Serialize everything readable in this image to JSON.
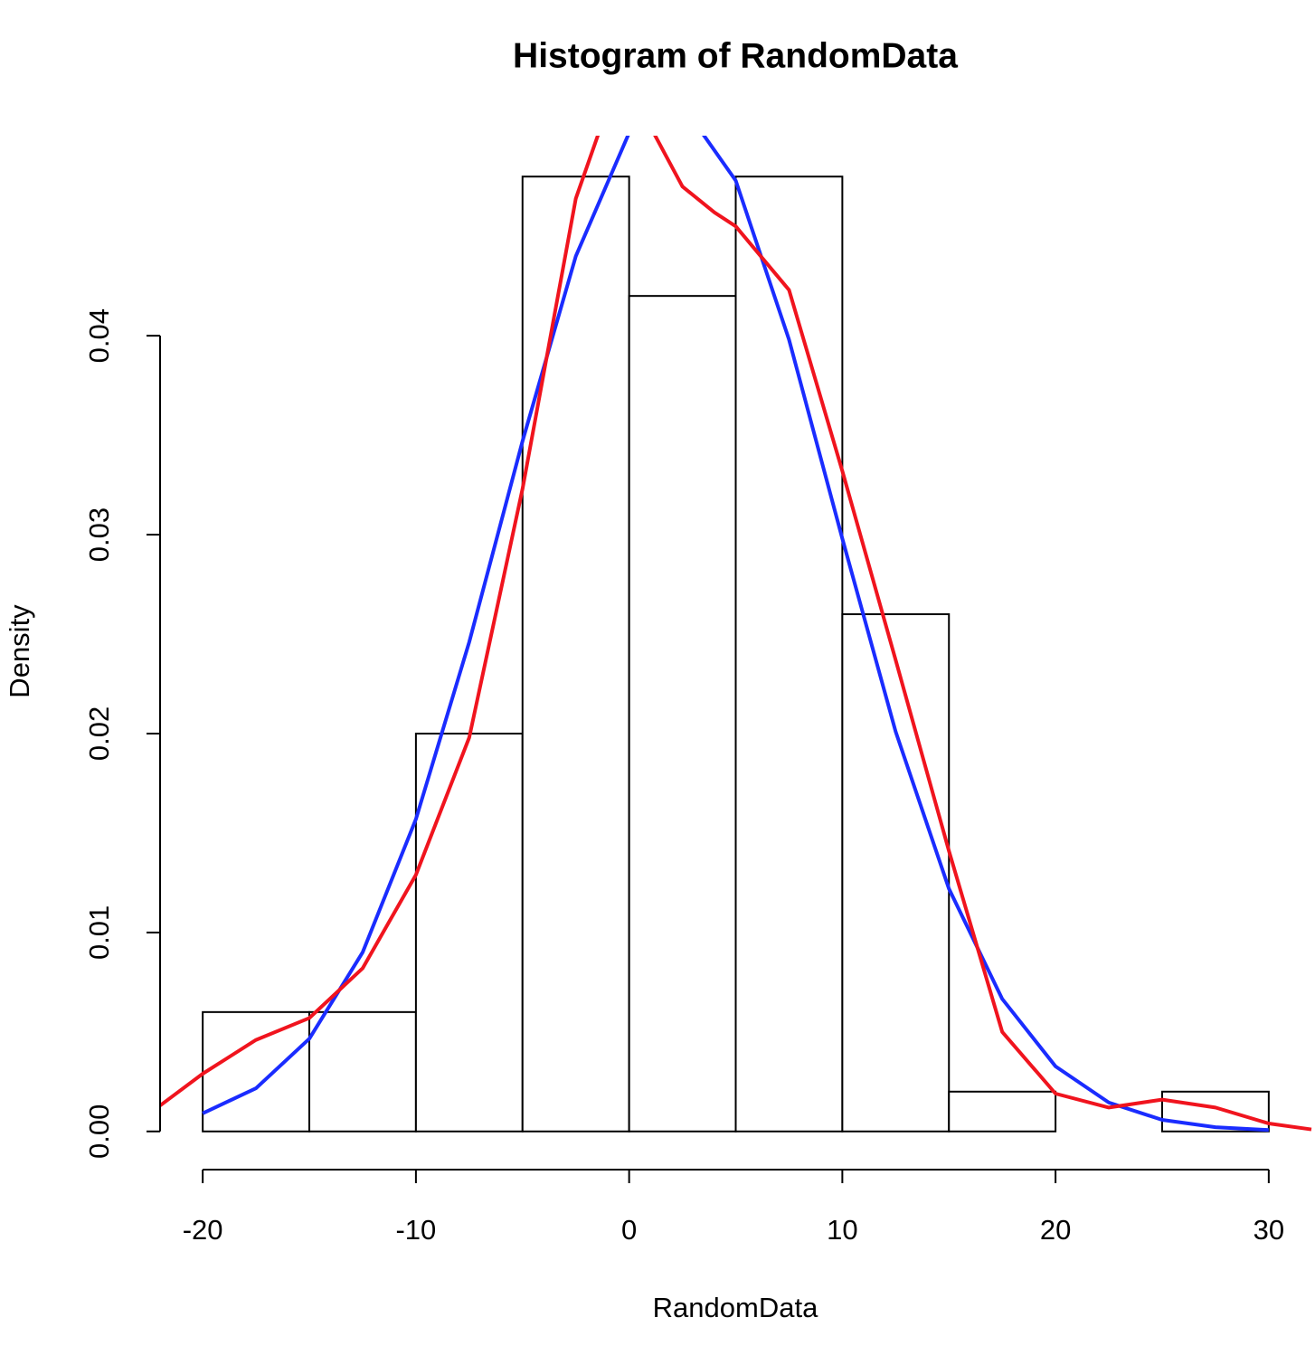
{
  "chart_data": {
    "type": "histogram",
    "title": "Histogram of RandomData",
    "xlabel": "RandomData",
    "ylabel": "Density",
    "bins": [
      -20,
      -15,
      -10,
      -5,
      0,
      5,
      10,
      15,
      20,
      25,
      30
    ],
    "values": [
      0.006,
      0.006,
      0.02,
      0.048,
      0.042,
      0.048,
      0.026,
      0.002,
      0,
      0.002
    ],
    "color": "#ffffff",
    "edgecolor": "#000000",
    "xlim": [
      -22,
      32
    ],
    "ylim": [
      -0.00192,
      0.04992
    ],
    "xticks": [
      -20,
      -10,
      0,
      10,
      20,
      30
    ],
    "yticks": [
      {
        "value": 0,
        "label": "0.00"
      },
      0.01,
      0.02,
      0.03,
      0.04
    ],
    "series": [
      {
        "color": "#1a2cff",
        "x": [
          -20,
          -17.5,
          -15,
          -12.5,
          -10,
          -7.5,
          -5,
          -2.5,
          0,
          2.5,
          5,
          7.5,
          10,
          12.5,
          15,
          17.5,
          20,
          22.5,
          25,
          27.5,
          30
        ],
        "values": [
          0.00091,
          0.00217,
          0.00466,
          0.009,
          0.0157,
          0.0246,
          0.0347,
          0.044,
          0.0502,
          0.0516,
          0.0478,
          0.0398,
          0.0298,
          0.0201,
          0.0122,
          0.00666,
          0.00327,
          0.00145,
          0.00058,
          0.00021,
          7e-05
        ]
      },
      {
        "color": "#f0141e",
        "x": [
          -22,
          -20,
          -17.5,
          -15,
          -12.5,
          -10,
          -7.5,
          -5,
          -2.5,
          -1,
          0,
          1,
          2.5,
          4,
          5,
          7.5,
          10,
          12.5,
          15,
          17.5,
          20,
          22.5,
          25,
          27.5,
          30,
          32
        ],
        "values": [
          0.0013,
          0.0029,
          0.0046,
          0.0057,
          0.0082,
          0.0129,
          0.0198,
          0.0323,
          0.0469,
          0.0515,
          0.0525,
          0.0505,
          0.0475,
          0.0462,
          0.0455,
          0.0423,
          0.0332,
          0.0237,
          0.0141,
          0.005,
          0.0019,
          0.0012,
          0.0016,
          0.0012,
          0.0004,
          0.0001
        ]
      }
    ]
  }
}
